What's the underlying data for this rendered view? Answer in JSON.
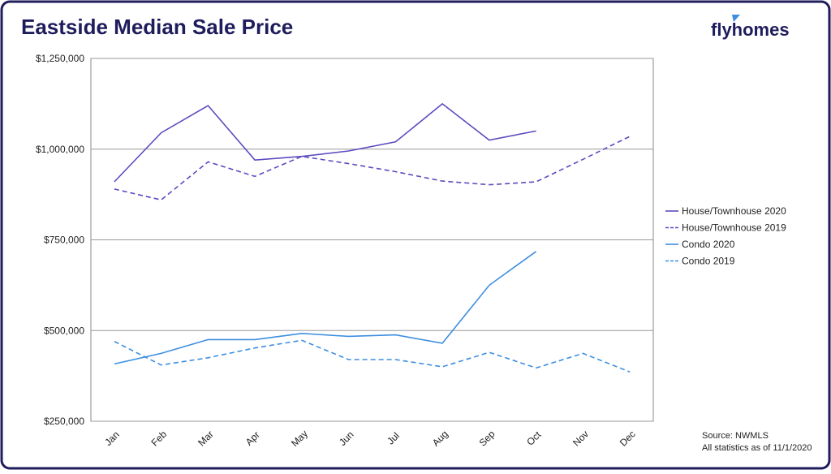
{
  "header": {
    "title": "Eastside Median Sale Price",
    "logo": "flyhomes"
  },
  "chart_data": {
    "type": "line",
    "categories": [
      "Jan",
      "Feb",
      "Mar",
      "Apr",
      "May",
      "Jun",
      "Jul",
      "Aug",
      "Sep",
      "Oct",
      "Nov",
      "Dec"
    ],
    "series": [
      {
        "name": "House/Townhouse 2020",
        "color": "#5b4cc0",
        "dashed": false,
        "values": [
          910000,
          1045000,
          1120000,
          970000,
          980000,
          995000,
          1020000,
          1125000,
          1025000,
          1050000,
          null,
          null
        ]
      },
      {
        "name": "House/Townhouse 2019",
        "color": "#5b4cc0",
        "dashed": true,
        "values": [
          890000,
          860000,
          965000,
          925000,
          980000,
          960000,
          938000,
          912000,
          902000,
          910000,
          972000,
          1035000
        ]
      },
      {
        "name": "Condo 2020",
        "color": "#3d8ee0",
        "dashed": false,
        "values": [
          408000,
          437000,
          475000,
          475000,
          492000,
          484000,
          488000,
          465000,
          625000,
          718000,
          null,
          null
        ]
      },
      {
        "name": "Condo 2019",
        "color": "#3d8ee0",
        "dashed": true,
        "values": [
          470000,
          405000,
          425000,
          452000,
          473000,
          420000,
          420000,
          400000,
          440000,
          397000,
          437000,
          386000
        ]
      }
    ],
    "ylim": [
      250000,
      1250000
    ],
    "yticks": [
      {
        "value": 250000,
        "label": "$250,000"
      },
      {
        "value": 500000,
        "label": "$500,000"
      },
      {
        "value": 750000,
        "label": "$750,000"
      },
      {
        "value": 1000000,
        "label": "$1,000,000"
      },
      {
        "value": 1250000,
        "label": "$1,250,000"
      }
    ],
    "grid": true,
    "legend": "right"
  },
  "footer": {
    "source": "Source: NWMLS",
    "note": "All statistics as of 11/1/2020"
  }
}
